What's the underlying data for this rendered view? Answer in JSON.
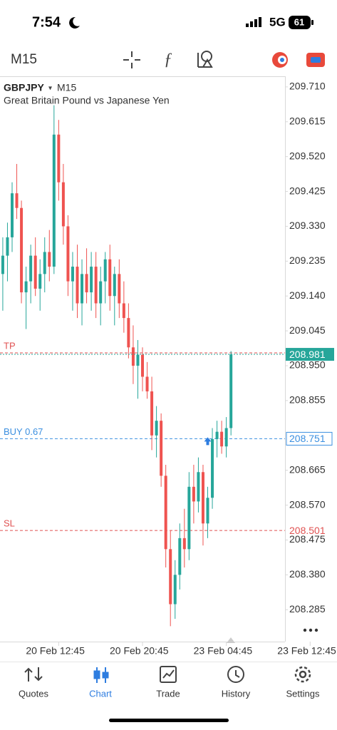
{
  "status_bar": {
    "time": "7:54",
    "network": "5G",
    "battery": "61"
  },
  "toolbar": {
    "timeframe": "M15"
  },
  "chart_data": {
    "type": "candlestick",
    "symbol": "GBPJPY",
    "symbol_timeframe": "M15",
    "subtitle": "Great Britain Pound vs Japanese Yen",
    "categories": [
      null,
      null,
      null,
      null,
      null,
      null,
      null,
      null,
      null,
      null,
      null,
      null,
      null,
      null,
      null,
      null,
      null,
      null,
      null,
      null,
      null,
      null,
      null,
      null,
      null,
      null,
      null,
      null,
      null,
      null,
      null,
      null,
      null,
      null,
      null,
      null,
      null,
      null,
      null,
      null,
      null,
      null,
      null,
      null,
      null,
      null,
      null,
      null,
      null,
      null
    ],
    "open": [
      209.2,
      209.25,
      209.3,
      209.42,
      209.38,
      209.15,
      209.18,
      209.25,
      209.16,
      209.2,
      209.26,
      209.22,
      209.58,
      209.45,
      209.33,
      209.18,
      209.22,
      209.12,
      209.2,
      209.15,
      209.22,
      209.12,
      209.18,
      209.24,
      209.14,
      209.2,
      209.12,
      209.08,
      209.0,
      208.95,
      208.98,
      208.92,
      208.88,
      208.76,
      208.8,
      208.65,
      208.45,
      208.3,
      208.38,
      208.48,
      208.45,
      208.62,
      208.58,
      208.66,
      208.52,
      208.59,
      208.75,
      208.77,
      208.73,
      208.78
    ],
    "high": [
      209.3,
      209.34,
      209.45,
      209.5,
      209.4,
      209.22,
      209.28,
      209.3,
      209.24,
      209.3,
      209.32,
      209.66,
      209.62,
      209.5,
      209.36,
      209.26,
      209.28,
      209.24,
      209.27,
      209.26,
      209.26,
      209.22,
      209.26,
      209.28,
      209.22,
      209.24,
      209.18,
      209.12,
      209.06,
      209.02,
      209.0,
      208.96,
      208.92,
      208.84,
      208.82,
      208.68,
      208.5,
      208.42,
      208.52,
      208.56,
      208.66,
      208.68,
      208.7,
      208.68,
      208.62,
      208.78,
      208.8,
      208.8,
      208.81,
      208.99
    ],
    "low": [
      209.1,
      209.18,
      209.26,
      209.35,
      209.12,
      209.05,
      209.12,
      209.14,
      209.1,
      209.15,
      209.18,
      209.2,
      209.4,
      209.28,
      209.14,
      209.1,
      209.08,
      209.06,
      209.12,
      209.1,
      209.08,
      209.06,
      209.12,
      209.1,
      209.06,
      209.08,
      209.04,
      208.97,
      208.9,
      208.86,
      208.88,
      208.86,
      208.72,
      208.7,
      208.62,
      208.4,
      208.24,
      208.26,
      208.34,
      208.4,
      208.42,
      208.52,
      208.55,
      208.46,
      208.48,
      208.56,
      208.7,
      208.71,
      208.7,
      208.76
    ],
    "close": [
      209.25,
      209.3,
      209.42,
      209.38,
      209.15,
      209.18,
      209.25,
      209.16,
      209.2,
      209.26,
      209.22,
      209.58,
      209.45,
      209.33,
      209.18,
      209.22,
      209.12,
      209.2,
      209.15,
      209.22,
      209.12,
      209.18,
      209.24,
      209.14,
      209.2,
      209.12,
      209.08,
      209.0,
      208.95,
      208.98,
      208.92,
      208.88,
      208.76,
      208.8,
      208.65,
      208.45,
      208.3,
      208.38,
      208.48,
      208.45,
      208.62,
      208.58,
      208.66,
      208.52,
      208.59,
      208.75,
      208.77,
      208.73,
      208.78,
      208.981
    ],
    "up_color": "#26a69a",
    "down_color": "#ef5350",
    "xlim": [
      -0.6,
      60.6
    ],
    "xticks": [
      {
        "value": 12,
        "label": "20 Feb 12:45"
      },
      {
        "value": 30,
        "label": "20 Feb 20:45"
      },
      {
        "value": 48,
        "label": "23 Feb 04:45"
      },
      {
        "value": 66,
        "label": "23 Feb 12:45"
      }
    ],
    "ylim": [
      208.198,
      209.737
    ],
    "yticks": [
      {
        "value": 209.71,
        "label": "209.710"
      },
      209.615,
      {
        "value": 209.52,
        "label": "209.520"
      },
      209.425,
      {
        "value": 209.33,
        "label": "209.330"
      },
      209.235,
      {
        "value": 209.14,
        "label": "209.140"
      },
      209.045,
      {
        "value": 208.95,
        "label": "208.950"
      },
      208.855,
      208.665,
      {
        "value": 208.57,
        "label": "208.570"
      },
      208.475,
      {
        "value": 208.38,
        "label": "208.380"
      },
      208.285
    ],
    "levels": [
      {
        "name": "TP",
        "value": 208.985,
        "color": "#e05252"
      },
      {
        "name": "BUY 0.67",
        "value": 208.751,
        "color": "#3b8fe0"
      },
      {
        "name": "SL",
        "value": 208.501,
        "color": "#e05252"
      }
    ],
    "current_price": 208.981
  },
  "tab_bar": {
    "tabs": [
      "Quotes",
      "Chart",
      "Trade",
      "History",
      "Settings"
    ],
    "active": 1
  }
}
